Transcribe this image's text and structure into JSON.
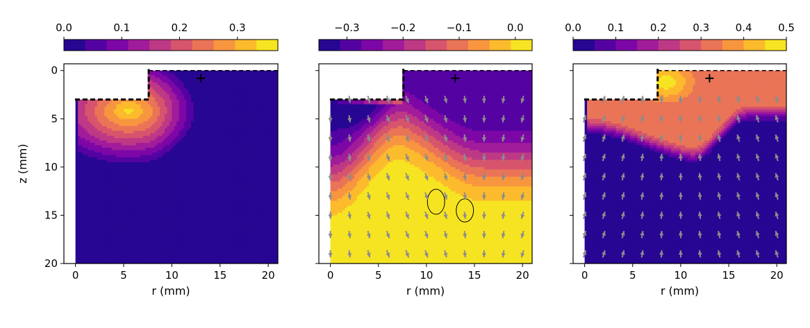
{
  "chart_data": [
    {
      "type": "heatmap",
      "xlabel": "r (mm)",
      "ylabel": "z (mm)",
      "xlim": [
        -1.2,
        21
      ],
      "ylim": [
        20,
        -0.7
      ],
      "xticks": [
        0,
        5,
        10,
        15,
        20
      ],
      "yticks": [
        0,
        5,
        10,
        15,
        20
      ],
      "colorbar": {
        "range": [
          0.0,
          0.37
        ],
        "ticks": [
          0.0,
          0.1,
          0.2,
          0.3
        ],
        "tick_labels": [
          "0.0",
          "0.1",
          "0.2",
          "0.3"
        ]
      },
      "colormap": "plasma",
      "value_max": 0.35,
      "peak": [
        5.5,
        4.2
      ],
      "marker": {
        "symbol": "+",
        "r": 13,
        "z": 0.8
      },
      "quiver": false
    },
    {
      "type": "heatmap",
      "xlabel": "r (mm)",
      "ylabel": "",
      "xlim": [
        -1.2,
        21
      ],
      "ylim": [
        20,
        -0.7
      ],
      "xticks": [
        0,
        5,
        10,
        15,
        20
      ],
      "yticks": [
        0,
        5,
        10,
        15,
        20
      ],
      "colorbar": {
        "range": [
          -0.35,
          0.03
        ],
        "ticks": [
          -0.3,
          -0.2,
          -0.1,
          0.0
        ],
        "tick_labels": [
          "−0.3",
          "−0.2",
          "−0.1",
          "0.0"
        ]
      },
      "colormap": "plasma",
      "value_min": -0.33,
      "marker": {
        "symbol": "+",
        "r": 13,
        "z": 0.8
      },
      "quiver": true,
      "closed_contours": [
        {
          "center": [
            11,
            13.6
          ],
          "radii": [
            0.9,
            1.3
          ]
        },
        {
          "center": [
            14,
            14.5
          ],
          "radii": [
            0.9,
            1.2
          ]
        }
      ]
    },
    {
      "type": "heatmap",
      "xlabel": "r (mm)",
      "ylabel": "",
      "xlim": [
        -1.2,
        21
      ],
      "ylim": [
        20,
        -0.7
      ],
      "xticks": [
        0,
        5,
        10,
        15,
        20
      ],
      "yticks": [
        0,
        5,
        10,
        15,
        20
      ],
      "colorbar": {
        "range": [
          0.0,
          0.5
        ],
        "ticks": [
          0.0,
          0.1,
          0.2,
          0.3,
          0.4,
          0.5
        ],
        "tick_labels": [
          "0.0",
          "0.1",
          "0.2",
          "0.3",
          "0.4",
          "0.5"
        ]
      },
      "colormap": "plasma",
      "value_max": 0.5,
      "peak": [
        8.5,
        1.2
      ],
      "marker": {
        "symbol": "+",
        "r": 13,
        "z": 0.8
      },
      "quiver": true
    }
  ],
  "colors": {
    "plasma": [
      "#0d0887",
      "#46039f",
      "#7201a8",
      "#9c179e",
      "#bd3786",
      "#d8576b",
      "#ed7953",
      "#fb9f3a",
      "#fdca26",
      "#f0f921"
    ],
    "arrow": "#8c8c8c",
    "background": "#ffffff",
    "axis": "#000000"
  },
  "electrode_notch": {
    "r_max": 7.6,
    "z_max": 3.0
  }
}
